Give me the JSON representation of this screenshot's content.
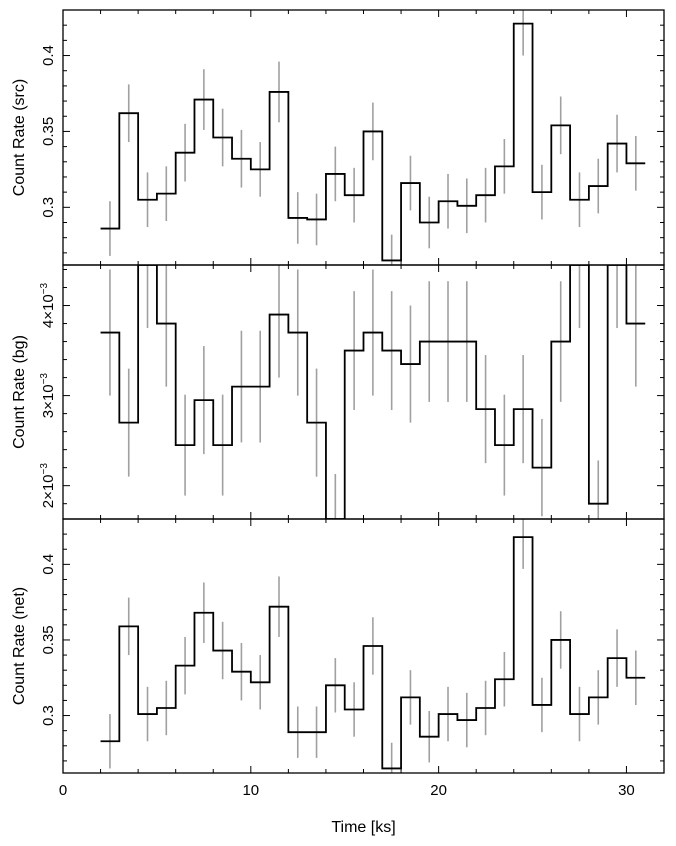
{
  "chart_data": {
    "type": "line",
    "style": "step",
    "xlabel": "Time [ks]",
    "xlim": [
      0,
      32
    ],
    "x_ticks": [
      0,
      10,
      20,
      30
    ],
    "bin_width_ks": 1.0,
    "colors": {
      "line": "#000000",
      "error_bars": "#a0a0a0",
      "frame": "#000000"
    },
    "panels": [
      {
        "ylabel": "Count Rate (src)",
        "ylim": [
          0.262,
          0.43
        ],
        "y_ticks": [
          0.3,
          0.35,
          0.4
        ],
        "y_tick_labels": [
          "0.3",
          "0.35",
          "0.4"
        ],
        "x": [
          2.5,
          3.5,
          4.5,
          5.5,
          6.5,
          7.5,
          8.5,
          9.5,
          10.5,
          11.5,
          12.5,
          13.5,
          14.5,
          15.5,
          16.5,
          17.5,
          18.5,
          19.5,
          20.5,
          21.5,
          22.5,
          23.5,
          24.5,
          25.5,
          26.5,
          27.5,
          28.5,
          29.5,
          30.5
        ],
        "y": [
          0.286,
          0.362,
          0.305,
          0.309,
          0.336,
          0.371,
          0.346,
          0.332,
          0.325,
          0.376,
          0.293,
          0.292,
          0.322,
          0.308,
          0.35,
          0.265,
          0.316,
          0.29,
          0.304,
          0.301,
          0.308,
          0.327,
          0.421,
          0.31,
          0.354,
          0.305,
          0.314,
          0.342,
          0.329
        ],
        "err": [
          0.018,
          0.019,
          0.018,
          0.018,
          0.019,
          0.02,
          0.019,
          0.019,
          0.018,
          0.02,
          0.017,
          0.017,
          0.018,
          0.018,
          0.019,
          0.017,
          0.018,
          0.017,
          0.018,
          0.018,
          0.018,
          0.018,
          0.021,
          0.018,
          0.019,
          0.018,
          0.018,
          0.019,
          0.018
        ]
      },
      {
        "ylabel": "Count Rate (bg)",
        "ylim": [
          0.00163,
          0.00445
        ],
        "y_ticks": [
          0.002,
          0.003,
          0.004
        ],
        "y_tick_labels": [
          {
            "base": "2×10",
            "exp": "−3"
          },
          {
            "base": "3×10",
            "exp": "−3"
          },
          {
            "base": "4×10",
            "exp": "−3"
          }
        ],
        "x": [
          2.5,
          3.5,
          4.5,
          5.5,
          6.5,
          7.5,
          8.5,
          9.5,
          10.5,
          11.5,
          12.5,
          13.5,
          14.5,
          15.5,
          16.5,
          17.5,
          18.5,
          19.5,
          20.5,
          21.5,
          22.5,
          23.5,
          24.5,
          25.5,
          26.5,
          27.5,
          28.5,
          29.5,
          30.5
        ],
        "y": [
          0.0037,
          0.0027,
          0.00445,
          0.0038,
          0.00245,
          0.00295,
          0.00245,
          0.0031,
          0.0031,
          0.0039,
          0.0037,
          0.0027,
          0.00163,
          0.0035,
          0.0037,
          0.0035,
          0.00335,
          0.0036,
          0.0036,
          0.0036,
          0.00285,
          0.00245,
          0.00285,
          0.0022,
          0.0036,
          0.00445,
          0.0018,
          0.00445,
          0.0038
        ],
        "err": [
          0.0007,
          0.0006,
          0.0007,
          0.0007,
          0.00056,
          0.0006,
          0.00056,
          0.00062,
          0.00062,
          0.0007,
          0.0007,
          0.0006,
          0.0005,
          0.00066,
          0.0007,
          0.00066,
          0.00065,
          0.00067,
          0.00067,
          0.00067,
          0.0006,
          0.00056,
          0.0006,
          0.00054,
          0.00067,
          0.0007,
          0.00048,
          0.0007,
          0.0007
        ]
      },
      {
        "ylabel": "Count Rate (net)",
        "ylim": [
          0.262,
          0.43
        ],
        "y_ticks": [
          0.3,
          0.35,
          0.4
        ],
        "y_tick_labels": [
          "0.3",
          "0.35",
          "0.4"
        ],
        "x": [
          2.5,
          3.5,
          4.5,
          5.5,
          6.5,
          7.5,
          8.5,
          9.5,
          10.5,
          11.5,
          12.5,
          13.5,
          14.5,
          15.5,
          16.5,
          17.5,
          18.5,
          19.5,
          20.5,
          21.5,
          22.5,
          23.5,
          24.5,
          25.5,
          26.5,
          27.5,
          28.5,
          29.5,
          30.5
        ],
        "y": [
          0.283,
          0.359,
          0.301,
          0.305,
          0.333,
          0.368,
          0.343,
          0.329,
          0.322,
          0.372,
          0.289,
          0.289,
          0.32,
          0.304,
          0.346,
          0.265,
          0.312,
          0.286,
          0.301,
          0.297,
          0.305,
          0.324,
          0.418,
          0.307,
          0.35,
          0.301,
          0.312,
          0.338,
          0.325
        ],
        "err": [
          0.018,
          0.019,
          0.018,
          0.018,
          0.019,
          0.02,
          0.019,
          0.019,
          0.018,
          0.02,
          0.017,
          0.017,
          0.018,
          0.018,
          0.019,
          0.017,
          0.018,
          0.017,
          0.018,
          0.018,
          0.018,
          0.018,
          0.021,
          0.018,
          0.019,
          0.018,
          0.018,
          0.019,
          0.018
        ]
      }
    ]
  }
}
